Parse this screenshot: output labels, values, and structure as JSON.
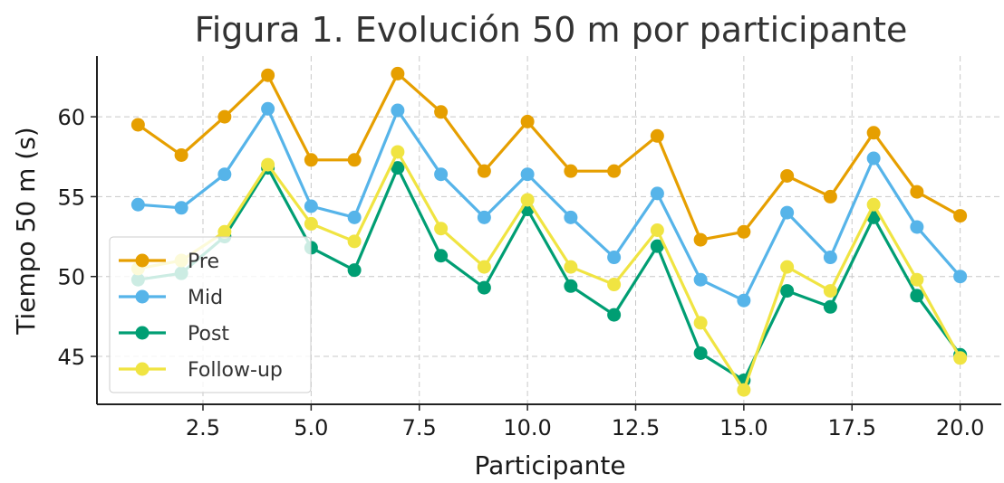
{
  "chart_data": {
    "type": "line",
    "title": "Figura 1. Evolución 50 m por participante",
    "xlabel": "Participante",
    "ylabel": "Tiempo 50 m (s)",
    "xlim": [
      0.05,
      20.95
    ],
    "ylim": [
      42.0,
      63.8
    ],
    "x_ticks": [
      2.5,
      5.0,
      7.5,
      10.0,
      12.5,
      15.0,
      17.5,
      20.0
    ],
    "x_tick_labels": [
      "2.5",
      "5.0",
      "7.5",
      "10.0",
      "12.5",
      "15.0",
      "17.5",
      "20.0"
    ],
    "y_ticks": [
      45,
      50,
      55,
      60
    ],
    "y_tick_labels": [
      "45",
      "50",
      "55",
      "60"
    ],
    "grid": true,
    "legend_position": "lower-left",
    "x": [
      1,
      2,
      3,
      4,
      5,
      6,
      7,
      8,
      9,
      10,
      11,
      12,
      13,
      14,
      15,
      16,
      17,
      18,
      19,
      20
    ],
    "series": [
      {
        "name": "Pre",
        "color": "#E69F00",
        "values": [
          59.5,
          57.6,
          60.0,
          62.6,
          57.3,
          57.3,
          62.7,
          60.3,
          56.6,
          59.7,
          56.6,
          56.6,
          58.8,
          52.3,
          52.8,
          56.3,
          55.0,
          59.0,
          55.3,
          53.8
        ]
      },
      {
        "name": "Mid",
        "color": "#56B4E9",
        "values": [
          54.5,
          54.3,
          56.4,
          60.5,
          54.4,
          53.7,
          60.4,
          56.4,
          53.7,
          56.4,
          53.7,
          51.2,
          55.2,
          49.8,
          48.5,
          54.0,
          51.2,
          57.4,
          53.1,
          50.0
        ]
      },
      {
        "name": "Post",
        "color": "#009E73",
        "values": [
          49.8,
          50.2,
          52.5,
          56.8,
          51.8,
          50.4,
          56.8,
          51.3,
          49.3,
          54.2,
          49.4,
          47.6,
          51.9,
          45.2,
          43.5,
          49.1,
          48.1,
          53.7,
          48.8,
          45.1
        ]
      },
      {
        "name": "Follow-up",
        "color": "#F0E442",
        "values": [
          50.5,
          51.0,
          52.8,
          57.0,
          53.3,
          52.2,
          57.8,
          53.0,
          50.6,
          54.8,
          50.6,
          49.5,
          52.9,
          47.1,
          42.9,
          50.6,
          49.1,
          54.5,
          49.8,
          44.9
        ]
      }
    ]
  }
}
